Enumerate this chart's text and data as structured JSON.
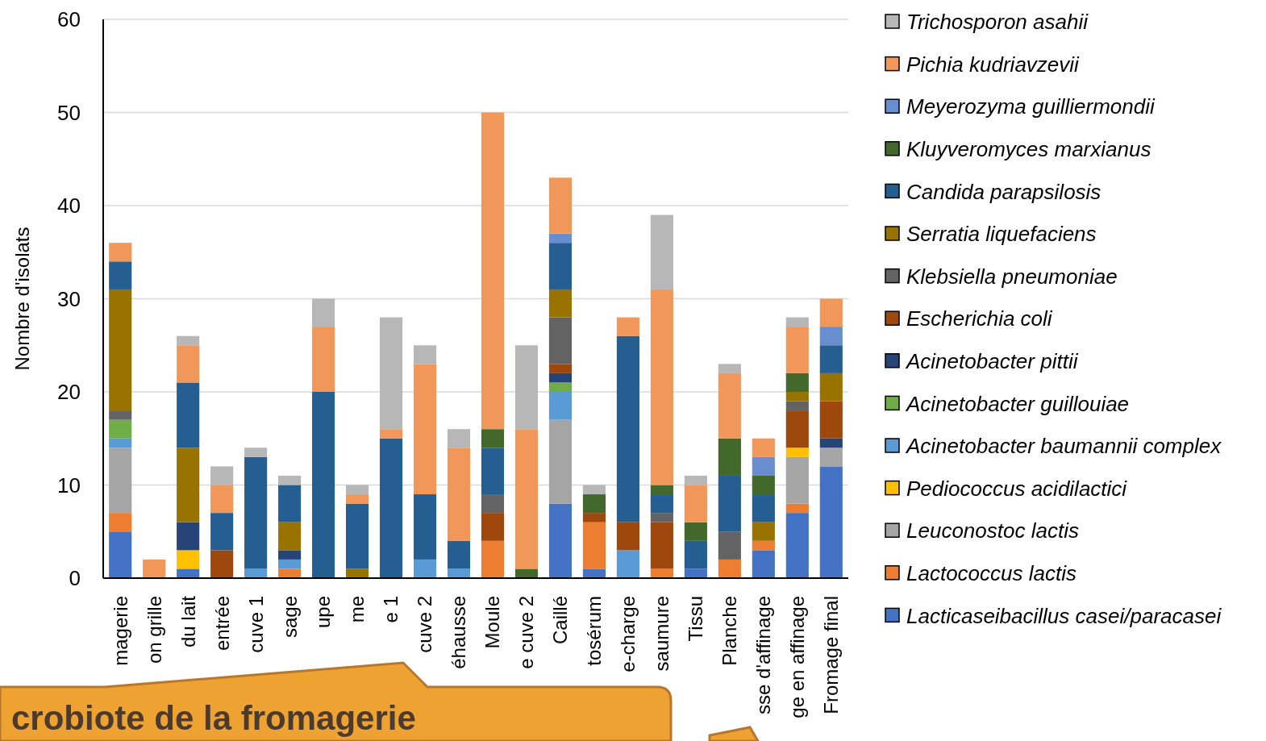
{
  "chart_data": {
    "type": "bar",
    "stacked": true,
    "ylabel": "Nombre d'isolats",
    "ylim": [
      0,
      60
    ],
    "yticks": [
      0,
      10,
      20,
      30,
      40,
      50,
      60
    ],
    "grid": "y",
    "legend": "right",
    "categories": [
      "magerie",
      "on grille",
      "du lait",
      "entrée",
      "cuve 1",
      "sage",
      "upe",
      "me",
      "e 1",
      "cuve 2",
      "éhausse",
      "Moule",
      "e cuve 2",
      "Caillé",
      "tosérum",
      "e-charge",
      "saumure",
      "Tissu",
      "Planche",
      "sse d'affinage",
      "ge en affinage",
      "Fromage final"
    ],
    "annotations": [
      "crobiote de la fromagerie"
    ],
    "series": [
      {
        "name": "Lacticaseibacillus casei/paracasei",
        "color": "#4472c4",
        "values": [
          5,
          null,
          1,
          null,
          null,
          null,
          null,
          null,
          null,
          null,
          null,
          null,
          null,
          8,
          1,
          null,
          null,
          1,
          null,
          3,
          7,
          12
        ]
      },
      {
        "name": "Lactococcus lactis",
        "color": "#ed7d31",
        "values": [
          2,
          null,
          null,
          null,
          null,
          1,
          null,
          null,
          null,
          null,
          null,
          4,
          null,
          null,
          5,
          null,
          1,
          null,
          2,
          1,
          1,
          null
        ]
      },
      {
        "name": "Leuconostoc lactis",
        "color": "#a5a5a5",
        "values": [
          7,
          null,
          null,
          null,
          null,
          null,
          null,
          null,
          null,
          null,
          null,
          null,
          null,
          9,
          null,
          null,
          null,
          null,
          null,
          null,
          5,
          2
        ]
      },
      {
        "name": "Pediococcus acidilactici",
        "color": "#ffc000",
        "values": [
          null,
          null,
          2,
          null,
          null,
          null,
          null,
          null,
          null,
          null,
          null,
          null,
          null,
          null,
          null,
          null,
          null,
          null,
          null,
          null,
          1,
          null
        ]
      },
      {
        "name": "Acinetobacter baumannii complex",
        "color": "#5b9bd5",
        "values": [
          1,
          null,
          null,
          null,
          1,
          1,
          null,
          null,
          null,
          2,
          1,
          null,
          null,
          3,
          null,
          3,
          null,
          null,
          null,
          null,
          null,
          null
        ]
      },
      {
        "name": "Acinetobacter guillouiae",
        "color": "#70ad47",
        "values": [
          2,
          null,
          null,
          null,
          null,
          null,
          null,
          null,
          null,
          null,
          null,
          null,
          null,
          1,
          null,
          null,
          null,
          null,
          null,
          null,
          null,
          null
        ]
      },
      {
        "name": "Acinetobacter pittii",
        "color": "#264478",
        "values": [
          null,
          null,
          3,
          null,
          null,
          1,
          null,
          null,
          null,
          null,
          null,
          null,
          null,
          1,
          null,
          null,
          null,
          null,
          null,
          null,
          null,
          1
        ]
      },
      {
        "name": "Escherichia coli",
        "color": "#9e480e",
        "values": [
          null,
          null,
          null,
          3,
          null,
          null,
          null,
          null,
          null,
          null,
          null,
          3,
          null,
          1,
          1,
          3,
          5,
          null,
          null,
          null,
          4,
          4
        ]
      },
      {
        "name": "Klebsiella pneumoniae",
        "color": "#636363",
        "values": [
          1,
          null,
          null,
          null,
          null,
          null,
          null,
          null,
          null,
          null,
          null,
          2,
          null,
          5,
          null,
          null,
          1,
          null,
          3,
          null,
          1,
          null
        ]
      },
      {
        "name": "Serratia liquefaciens",
        "color": "#997300",
        "values": [
          13,
          null,
          8,
          null,
          null,
          3,
          null,
          1,
          null,
          null,
          null,
          null,
          null,
          3,
          null,
          null,
          null,
          null,
          null,
          2,
          1,
          3
        ]
      },
      {
        "name": "Candida parapsilosis",
        "color": "#255e91",
        "values": [
          3,
          null,
          7,
          4,
          12,
          4,
          20,
          7,
          15,
          7,
          3,
          5,
          null,
          5,
          null,
          20,
          2,
          3,
          6,
          3,
          null,
          3
        ]
      },
      {
        "name": "Kluyveromyces marxianus",
        "color": "#43682b",
        "values": [
          null,
          null,
          null,
          null,
          null,
          null,
          null,
          null,
          null,
          null,
          null,
          2,
          1,
          null,
          2,
          null,
          1,
          2,
          4,
          2,
          2,
          null
        ]
      },
      {
        "name": "Meyerozyma guilliermondii",
        "color": "#698ed0",
        "values": [
          null,
          null,
          null,
          null,
          null,
          null,
          null,
          null,
          null,
          null,
          null,
          null,
          null,
          1,
          null,
          null,
          null,
          null,
          null,
          2,
          null,
          2
        ]
      },
      {
        "name": "Pichia kudriavzevii",
        "color": "#f1975a",
        "values": [
          2,
          2,
          4,
          3,
          null,
          null,
          7,
          1,
          1,
          14,
          10,
          34,
          15,
          6,
          null,
          2,
          21,
          4,
          7,
          2,
          5,
          3
        ]
      },
      {
        "name": "Trichosporon asahii",
        "color": "#b7b7b7",
        "values": [
          null,
          null,
          1,
          2,
          1,
          1,
          3,
          1,
          12,
          2,
          2,
          null,
          9,
          null,
          1,
          null,
          8,
          1,
          1,
          null,
          1,
          null
        ]
      }
    ]
  }
}
